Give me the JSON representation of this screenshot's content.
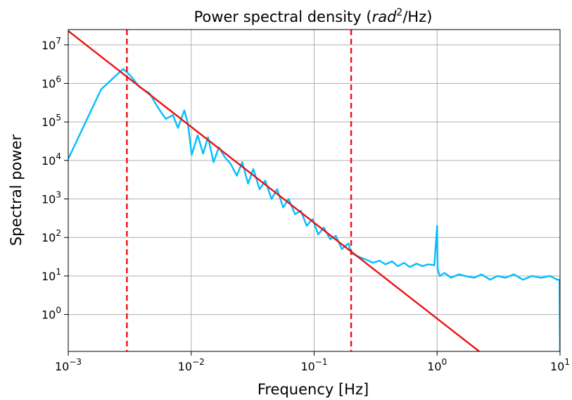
{
  "chart_data": {
    "type": "line",
    "title": "Power spectral density (rad²/Hz)",
    "title_parts": {
      "prefix": "Power spectral density (",
      "italic": "rad",
      "sup": "2",
      "suffix": "/Hz)"
    },
    "xlabel": "Frequency [Hz]",
    "ylabel": "Spectral power",
    "x_scale": "log",
    "y_scale": "log",
    "xlim": [
      0.001,
      10
    ],
    "ylim": [
      0.11,
      25000000
    ],
    "grid": true,
    "legend": "none",
    "x_ticks": [
      {
        "value": 0.001,
        "base": "10",
        "exp": "−3"
      },
      {
        "value": 0.01,
        "base": "10",
        "exp": "−2"
      },
      {
        "value": 0.1,
        "base": "10",
        "exp": "−1"
      },
      {
        "value": 1,
        "base": "10",
        "exp": "0"
      },
      {
        "value": 10,
        "base": "10",
        "exp": "1"
      }
    ],
    "y_ticks": [
      {
        "value": 1,
        "base": "10",
        "exp": "0"
      },
      {
        "value": 10,
        "base": "10",
        "exp": "1"
      },
      {
        "value": 100,
        "base": "10",
        "exp": "2"
      },
      {
        "value": 1000,
        "base": "10",
        "exp": "3"
      },
      {
        "value": 10000,
        "base": "10",
        "exp": "4"
      },
      {
        "value": 100000,
        "base": "10",
        "exp": "5"
      },
      {
        "value": 1000000,
        "base": "10",
        "exp": "6"
      },
      {
        "value": 10000000,
        "base": "10",
        "exp": "7"
      }
    ],
    "series": [
      {
        "type": "line",
        "color": "#00bfff",
        "x": [
          0.001,
          0.00185,
          0.0028,
          0.0032,
          0.0038,
          0.0046,
          0.0053,
          0.0062,
          0.0071,
          0.0078,
          0.0088,
          0.0094,
          0.0101,
          0.0113,
          0.0125,
          0.0137,
          0.0152,
          0.0168,
          0.0188,
          0.021,
          0.0235,
          0.026,
          0.029,
          0.032,
          0.036,
          0.04,
          0.045,
          0.05,
          0.056,
          0.062,
          0.07,
          0.078,
          0.087,
          0.097,
          0.108,
          0.12,
          0.135,
          0.15,
          0.168,
          0.19,
          0.2,
          0.215,
          0.24,
          0.27,
          0.3,
          0.34,
          0.38,
          0.43,
          0.48,
          0.54,
          0.6,
          0.68,
          0.76,
          0.85,
          0.95,
          1.0,
          1.01,
          1.05,
          1.15,
          1.3,
          1.5,
          1.7,
          2.0,
          2.3,
          2.7,
          3.1,
          3.6,
          4.2,
          5.0,
          5.9,
          7.0,
          8.3,
          9.5,
          9.9,
          10
        ],
        "y": [
          11000,
          700000,
          2400000,
          1600000,
          800000,
          550000,
          250000,
          120000,
          150000,
          70000,
          200000,
          90000,
          14000,
          45000,
          15000,
          40000,
          9000,
          22000,
          12000,
          8000,
          4000,
          9000,
          2500,
          6000,
          1800,
          3000,
          1000,
          1800,
          600,
          1000,
          400,
          500,
          200,
          300,
          120,
          180,
          90,
          110,
          50,
          70,
          40,
          35,
          30,
          26,
          22,
          25,
          20,
          24,
          18,
          22,
          17,
          21,
          18,
          20,
          19,
          200,
          15,
          10,
          12,
          9,
          11,
          10,
          9,
          11,
          8,
          10,
          9,
          11,
          8,
          10,
          9,
          10,
          8,
          8,
          0.11
        ]
      },
      {
        "type": "line",
        "color": "#ee1111",
        "x": [
          0.001,
          2.2
        ],
        "y": [
          23000000,
          0.11
        ]
      }
    ],
    "vlines": [
      {
        "x": 0.003,
        "color": "#ee1111",
        "style": "dashed"
      },
      {
        "x": 0.2,
        "color": "#ee1111",
        "style": "dashed"
      }
    ]
  }
}
